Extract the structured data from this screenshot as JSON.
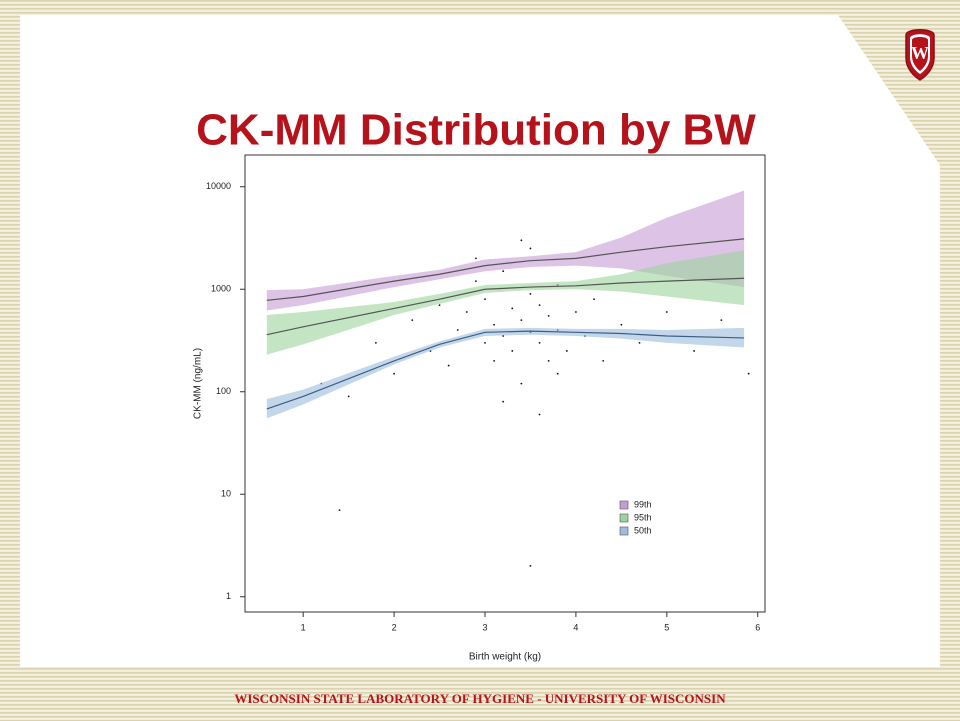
{
  "slide": {
    "title": "CK-MM Distribution by BW",
    "footer": "WISCONSIN STATE LABORATORY OF HYGIENE - UNIVERSITY OF WISCONSIN"
  },
  "chart_data": {
    "type": "line",
    "x_label": "Birth weight (kg)",
    "y_label": "CK-MM (ng/mL)",
    "log_y": true,
    "xlim": [
      0.36,
      6.08
    ],
    "ylim": [
      0.71,
      20400
    ],
    "xticks": [
      1,
      2,
      3,
      4,
      5,
      6
    ],
    "yticks": [
      1,
      10,
      100,
      1000,
      10000
    ],
    "legend": "lower-right",
    "x": [
      0.6,
      1,
      2,
      2.5,
      3,
      3.5,
      4,
      4.5,
      5,
      5.85
    ],
    "series": [
      {
        "name": "99th",
        "color": "#c79bd3",
        "line_color": "#555555",
        "values": [
          780,
          850,
          1200,
          1400,
          1700,
          1900,
          2000,
          2300,
          2600,
          3100
        ],
        "lower": [
          620,
          700,
          1050,
          1250,
          1500,
          1650,
          1700,
          1600,
          1350,
          1050
        ],
        "upper": [
          980,
          1000,
          1350,
          1550,
          1950,
          2100,
          2300,
          3200,
          5000,
          9200
        ]
      },
      {
        "name": "95th",
        "color": "#9dd39d",
        "line_color": "#555555",
        "values": [
          360,
          430,
          650,
          800,
          1000,
          1050,
          1080,
          1150,
          1200,
          1280
        ],
        "lower": [
          230,
          290,
          560,
          720,
          920,
          980,
          1000,
          950,
          850,
          700
        ],
        "upper": [
          560,
          600,
          750,
          900,
          1100,
          1150,
          1200,
          1400,
          1800,
          2400
        ]
      },
      {
        "name": "50th",
        "color": "#9cbddc",
        "line_color": "#3a5f86",
        "values": [
          68,
          90,
          200,
          290,
          380,
          390,
          380,
          370,
          350,
          335
        ],
        "lower": [
          55,
          75,
          185,
          270,
          350,
          360,
          350,
          330,
          300,
          270
        ],
        "upper": [
          85,
          105,
          220,
          310,
          410,
          420,
          410,
          410,
          400,
          420
        ]
      }
    ],
    "points": {
      "color": "#111111",
      "x": [
        1.2,
        1.5,
        1.8,
        2.0,
        2.2,
        2.4,
        2.5,
        2.6,
        2.7,
        2.8,
        2.9,
        3.0,
        3.0,
        3.1,
        3.1,
        3.2,
        3.2,
        3.3,
        3.3,
        3.4,
        3.4,
        3.5,
        3.5,
        3.5,
        3.6,
        3.6,
        3.7,
        3.7,
        3.8,
        3.8,
        3.9,
        4.0,
        4.1,
        4.2,
        4.3,
        4.5,
        4.7,
        5.0,
        5.3,
        5.6,
        3.2,
        3.4,
        3.6,
        2.9,
        3.8,
        1.4,
        5.9,
        3.5
      ],
      "y": [
        120,
        90,
        300,
        150,
        500,
        250,
        700,
        180,
        400,
        600,
        1200,
        300,
        800,
        200,
        450,
        350,
        1500,
        250,
        650,
        500,
        120,
        380,
        900,
        2500,
        300,
        700,
        200,
        550,
        400,
        1100,
        250,
        600,
        350,
        800,
        200,
        450,
        300,
        600,
        250,
        500,
        80,
        3000,
        60,
        2000,
        150,
        7,
        150,
        2
      ]
    }
  }
}
